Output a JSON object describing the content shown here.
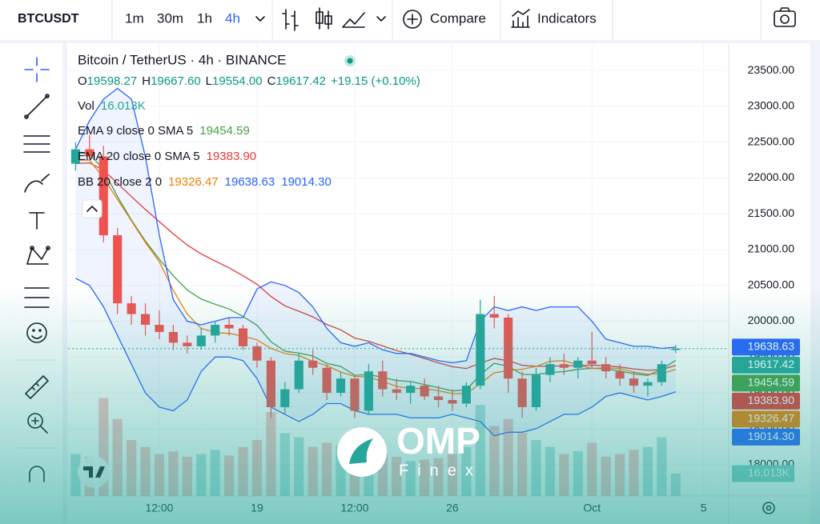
{
  "toolbar": {
    "symbol": "BTCUSDT",
    "intervals": [
      "1m",
      "30m",
      "1h",
      "4h"
    ],
    "compare": "Compare",
    "indicators": "Indicators"
  },
  "watermark": {
    "brand": "OMP",
    "sub": "Finex"
  },
  "chart_data": {
    "type": "candlestick",
    "title": "Bitcoin / TetherUS · 4h · BINANCE",
    "legend_ohlc": [
      {
        "label": "O",
        "value": "19598.27"
      },
      {
        "label": "H",
        "value": "19667.60"
      },
      {
        "label": "L",
        "value": "19554.00"
      },
      {
        "label": "C",
        "value": "19617.42"
      }
    ],
    "change": "+19.15 (+0.10%)",
    "volume_name": "Vol",
    "volume_label": "16.013K",
    "up_color": "#26a69a",
    "down_color": "#ef5350",
    "x": [
      -6.5,
      -6,
      -5.5,
      -5,
      -4.5,
      -4,
      -3.5,
      -3,
      -2.5,
      -2,
      -1.5,
      -1,
      -0.5,
      0,
      0.5,
      1,
      1.5,
      2,
      2.5,
      3,
      3.5,
      4,
      4.5,
      5,
      5.5,
      6,
      6.5,
      7,
      7.5,
      8,
      8.5,
      9,
      9.5,
      10,
      10.5,
      11,
      11.5,
      12,
      12.5,
      13,
      13.5,
      14,
      14.5,
      15
    ],
    "open": [
      22200,
      22400,
      22300,
      21200,
      20250,
      20100,
      19950,
      19850,
      19700,
      19650,
      19800,
      19950,
      19900,
      19650,
      19450,
      18800,
      19050,
      19450,
      19350,
      19000,
      19200,
      18750,
      19300,
      19050,
      19000,
      19100,
      18950,
      18900,
      18850,
      19100,
      20100,
      20050,
      19200,
      18800,
      19250,
      19400,
      19350,
      19450,
      19400,
      19300,
      19200,
      19100,
      19150,
      19598.27
    ],
    "high": [
      22500,
      22600,
      22450,
      21300,
      20350,
      20250,
      20150,
      19950,
      19800,
      19900,
      20000,
      20050,
      19950,
      19700,
      19500,
      19150,
      19550,
      19600,
      19400,
      19300,
      19250,
      19400,
      19450,
      19200,
      19150,
      19200,
      19100,
      19050,
      19150,
      20300,
      20350,
      20100,
      19300,
      19350,
      19500,
      19550,
      19500,
      19850,
      19500,
      19400,
      19300,
      19200,
      19450,
      19667.6
    ],
    "low": [
      22100,
      22250,
      21100,
      20100,
      19950,
      19800,
      19750,
      19600,
      19550,
      19600,
      19700,
      19800,
      19600,
      19350,
      18650,
      18700,
      19000,
      19250,
      18900,
      18950,
      18650,
      18700,
      18950,
      18900,
      18850,
      18900,
      18800,
      18750,
      18800,
      19050,
      19900,
      19000,
      18650,
      18750,
      19150,
      19250,
      19200,
      19350,
      19200,
      19100,
      19000,
      18950,
      19100,
      19554
    ],
    "close": [
      22400,
      22300,
      21200,
      20250,
      20100,
      19950,
      19850,
      19700,
      19650,
      19800,
      19950,
      19900,
      19650,
      19450,
      18800,
      19050,
      19450,
      19350,
      19000,
      19200,
      18750,
      19300,
      19050,
      19000,
      19100,
      18950,
      18900,
      18850,
      19100,
      20100,
      20050,
      19200,
      18800,
      19250,
      19400,
      19350,
      19450,
      19400,
      19300,
      19200,
      19100,
      19150,
      19400,
      19617.42
    ],
    "volume": [
      30000,
      28000,
      70000,
      55000,
      40000,
      35000,
      30000,
      32000,
      28000,
      30000,
      33000,
      29000,
      35000,
      40000,
      60000,
      45000,
      42000,
      35000,
      38000,
      36000,
      45000,
      40000,
      30000,
      28000,
      25000,
      26000,
      27000,
      30000,
      35000,
      65000,
      50000,
      55000,
      45000,
      40000,
      35000,
      30000,
      32000,
      38000,
      28000,
      30000,
      33000,
      35000,
      42000,
      16013
    ],
    "volume_lim": [
      0,
      80000
    ],
    "indicators": [
      {
        "name": "EMA 9 close 0 SMA 5",
        "lines": [
          {
            "color": "#43a047",
            "last_label": "19454.59",
            "values": [
              22350,
              22340,
              22112,
              21740,
              21412,
              21120,
              20866,
              20633,
              20436,
              20309,
              20237,
              20170,
              20066,
              19943,
              19714,
              19581,
              19555,
              19514,
              19411,
              19369,
              19245,
              19256,
              19215,
              19172,
              19158,
              19116,
              19073,
              19028,
              19043,
              19254,
              19413,
              19371,
              19257,
              19255,
              19284,
              19297,
              19328,
              19342,
              19334,
              19307,
              19266,
              19243,
              19330,
              19454.59
            ]
          }
        ]
      },
      {
        "name": "EMA 20 close 0 SMA 5",
        "lines": [
          {
            "color": "#e53935",
            "last_label": "19383.90",
            "values": [
              22200,
              22210,
              22110,
              21925,
              21740,
              21560,
              21390,
              21220,
              21065,
              20940,
              20840,
              20745,
              20635,
              20515,
              20345,
              20215,
              20140,
              20060,
              19955,
              19880,
              19765,
              19720,
              19655,
              19590,
              19540,
              19480,
              19420,
              19365,
              19340,
              19415,
              19480,
              19450,
              19385,
              19370,
              19375,
              19375,
              19385,
              19385,
              19380,
              19360,
              19335,
              19315,
              19325,
              19383.9
            ]
          }
        ]
      },
      {
        "name": "BB 20 close 2 0",
        "fill": "rgba(41,98,255,0.07)",
        "lines": [
          {
            "color": "#f57c00",
            "last_label": "19326.47",
            "values": [
              22250,
              22250,
              22000,
              21700,
              21400,
              21100,
              20830,
              20430,
              20100,
              19900,
              19840,
              19830,
              19790,
              19740,
              19620,
              19550,
              19520,
              19440,
              19380,
              19290,
              19230,
              19220,
              19160,
              19090,
              19060,
              19060,
              19030,
              18990,
              18990,
              19130,
              19280,
              19310,
              19330,
              19370,
              19440,
              19450,
              19390,
              19340,
              19350,
              19340,
              19290,
              19260,
              19270,
              19326.47
            ]
          },
          {
            "color": "#2962ff",
            "last_label": "19638.63",
            "values": [
              22400,
              22800,
              23100,
              23250,
              23100,
              22300,
              21200,
              20300,
              20000,
              19950,
              20000,
              20050,
              20050,
              20450,
              20550,
              20500,
              20400,
              20200,
              19900,
              19700,
              19650,
              19700,
              19600,
              19550,
              19550,
              19500,
              19450,
              19420,
              19450,
              20000,
              20200,
              20150,
              20200,
              20150,
              20200,
              20200,
              20200,
              20000,
              19750,
              19700,
              19650,
              19650,
              19620,
              19638.63
            ]
          },
          {
            "color": "#2962ff",
            "last_label": "19014.30",
            "values": [
              20600,
              20500,
              20200,
              19800,
              19400,
              19000,
              18800,
              18750,
              18900,
              19300,
              19500,
              19500,
              19450,
              19200,
              18800,
              18700,
              18600,
              18700,
              18850,
              18850,
              18750,
              18700,
              18700,
              18700,
              18650,
              18650,
              18650,
              18700,
              18650,
              18600,
              18400,
              18450,
              18450,
              18500,
              18600,
              18700,
              18700,
              18800,
              18950,
              19000,
              18950,
              18900,
              18950,
              19014.3
            ]
          }
        ]
      }
    ],
    "xlim": [
      -6.77,
      16.9
    ],
    "xticks": [
      {
        "value": -3.5,
        "label": "12:00"
      },
      {
        "value": 0,
        "label": "19"
      },
      {
        "value": 3.5,
        "label": "12:00"
      },
      {
        "value": 7,
        "label": "26"
      },
      {
        "value": 12,
        "label": "Oct"
      },
      {
        "value": 16,
        "label": "5"
      }
    ],
    "ylim": [
      17560,
      23870
    ],
    "yticks": [
      {
        "value": 18000,
        "label": "18000.00"
      },
      {
        "value": 18500,
        "label": "18500.00"
      },
      {
        "value": 19000,
        "label": "19000.00"
      },
      {
        "value": 19500,
        "label": "19500.00"
      },
      {
        "value": 20000,
        "label": "20000.00"
      },
      {
        "value": 20500,
        "label": "20500.00"
      },
      {
        "value": 21000,
        "label": "21000.00"
      },
      {
        "value": 21500,
        "label": "21500.00"
      },
      {
        "value": 22000,
        "label": "22000.00"
      },
      {
        "value": 22500,
        "label": "22500.00"
      },
      {
        "value": 23000,
        "label": "23000.00"
      },
      {
        "value": 23500,
        "label": "23500.00"
      }
    ],
    "grid": true
  }
}
